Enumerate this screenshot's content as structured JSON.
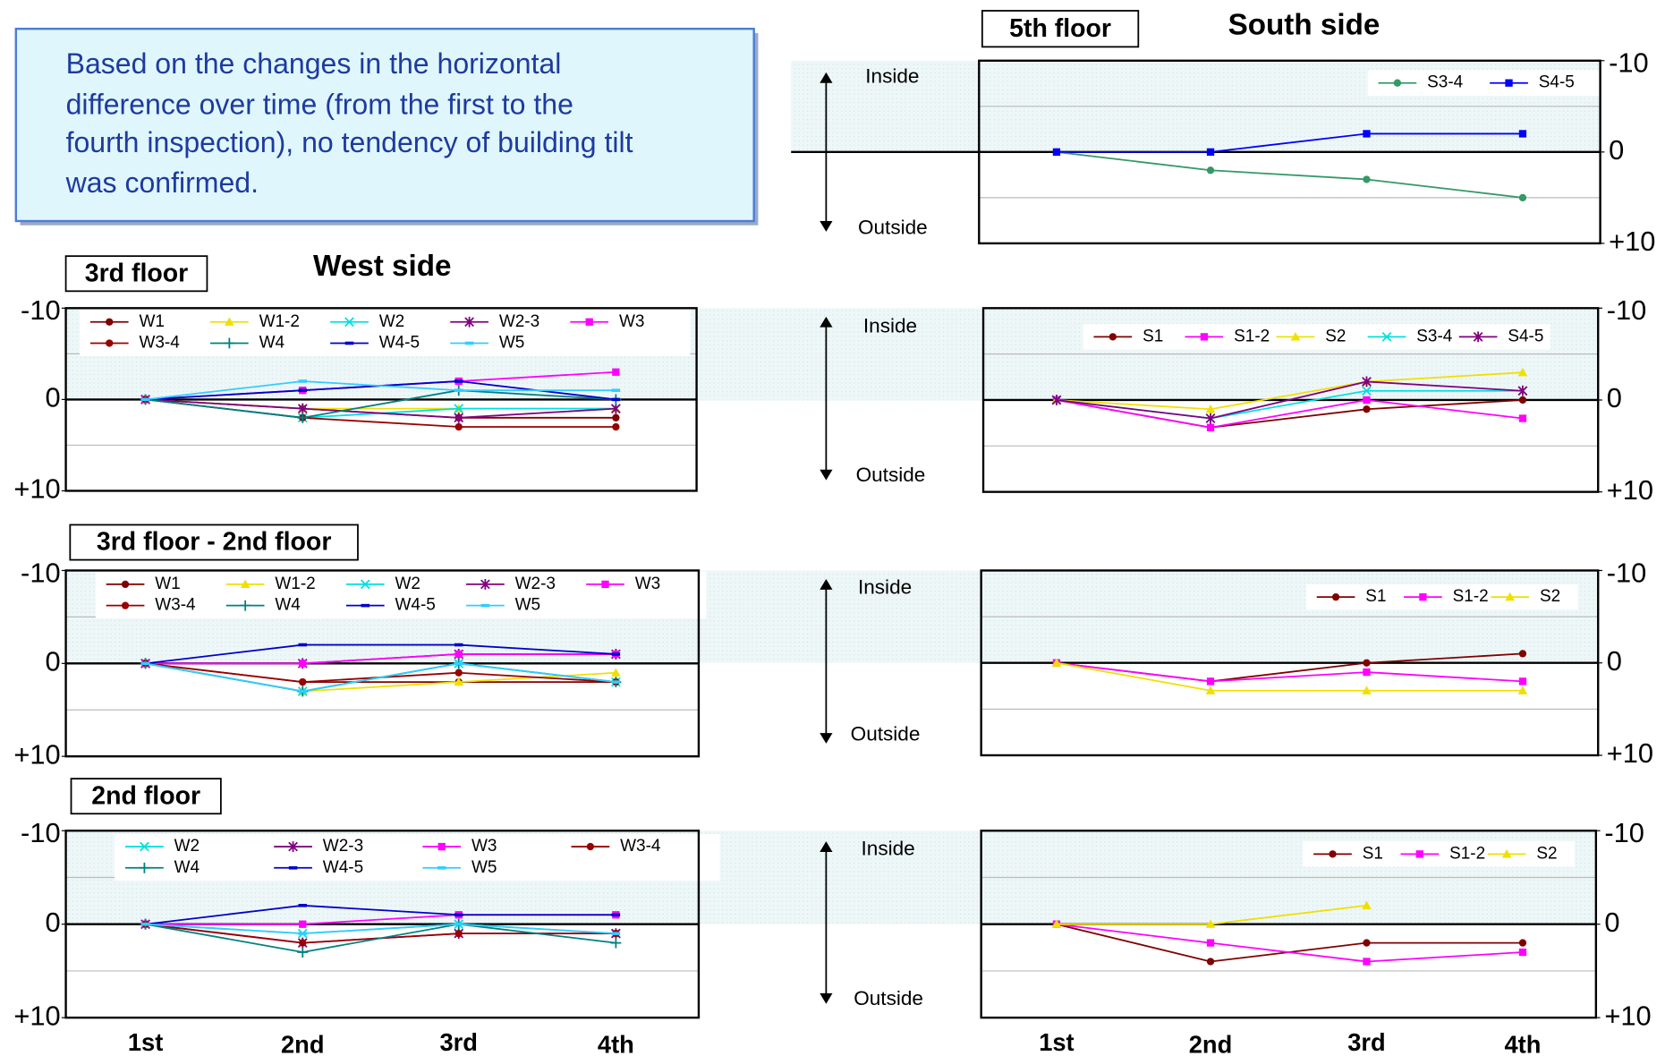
{
  "note": {
    "lines": [
      "Based on the changes in the horizontal",
      "difference over time (from the first to the",
      "fourth inspection), no tendency of building tilt",
      "was confirmed."
    ]
  },
  "headings": {
    "west": "West side",
    "south": "South side"
  },
  "arrows": [
    {
      "inside": "Inside",
      "outside": "Outside"
    },
    {
      "inside": "Inside",
      "outside": "Outside"
    },
    {
      "inside": "Inside",
      "outside": "Outside"
    },
    {
      "inside": "Inside",
      "outside": "Outside"
    }
  ],
  "chart_data": [
    {
      "type": "line",
      "title": "5th floor",
      "categories": [
        null,
        null,
        null,
        null
      ],
      "series": [
        {
          "name": "S3-4",
          "color": "#339966",
          "marker": "circle",
          "values": [
            0,
            2,
            3,
            5
          ]
        },
        {
          "name": "S4-5",
          "color": "#0000ff",
          "marker": "square",
          "values": [
            0,
            0,
            -2,
            -2
          ]
        }
      ],
      "ylim": [
        -10,
        10
      ],
      "y_reversed": true,
      "yticks": [
        -10,
        0,
        {
          "value": 10,
          "label": "+10"
        }
      ],
      "grid_lines": [
        -5,
        5
      ],
      "legend": "upper right"
    },
    {
      "type": "line",
      "title": "3rd floor",
      "categories": [
        null,
        null,
        null,
        null
      ],
      "series": [
        {
          "name": "W1",
          "color": "#800000",
          "marker": "circle",
          "values": [
            0,
            1,
            2,
            2
          ]
        },
        {
          "name": "W1-2",
          "color": "#f0e000",
          "marker": "triangle",
          "values": [
            0,
            1,
            1,
            1
          ]
        },
        {
          "name": "W2",
          "color": "#00e0e0",
          "marker": "x",
          "values": [
            0,
            2,
            1,
            1
          ]
        },
        {
          "name": "W2-3",
          "color": "#800080",
          "marker": "star",
          "values": [
            0,
            1,
            2,
            1
          ]
        },
        {
          "name": "W3",
          "color": "#ff00ff",
          "marker": "square",
          "values": [
            0,
            -1,
            -2,
            -3
          ]
        },
        {
          "name": "W3-4",
          "color": "#990000",
          "marker": "circle",
          "values": [
            0,
            2,
            3,
            3
          ]
        },
        {
          "name": "W4",
          "color": "#008080",
          "marker": "plus",
          "values": [
            0,
            2,
            -1,
            0
          ]
        },
        {
          "name": "W4-5",
          "color": "#0000cc",
          "marker": "dash",
          "values": [
            0,
            -1,
            -2,
            0
          ]
        },
        {
          "name": "W5",
          "color": "#33ccff",
          "marker": "dash",
          "values": [
            0,
            -2,
            -1,
            -1
          ]
        }
      ],
      "ylim": [
        -10,
        10
      ],
      "y_reversed": true,
      "yticks": [
        -10,
        0,
        {
          "value": 10,
          "label": "+10"
        }
      ],
      "grid_lines": [
        -5,
        5
      ],
      "legend": "upper left"
    },
    {
      "type": "line",
      "categories": [
        null,
        null,
        null,
        null
      ],
      "series": [
        {
          "name": "S1",
          "color": "#800000",
          "marker": "circle",
          "values": [
            0,
            3,
            1,
            0
          ]
        },
        {
          "name": "S1-2",
          "color": "#ff00ff",
          "marker": "square",
          "values": [
            0,
            3,
            0,
            2
          ]
        },
        {
          "name": "S2",
          "color": "#f0e000",
          "marker": "triangle",
          "values": [
            0,
            1,
            -2,
            -3
          ]
        },
        {
          "name": "S3-4",
          "color": "#00e0e0",
          "marker": "x",
          "values": [
            0,
            2,
            -1,
            -1
          ]
        },
        {
          "name": "S4-5",
          "color": "#800080",
          "marker": "star",
          "values": [
            0,
            2,
            -2,
            -1
          ]
        }
      ],
      "ylim": [
        -10,
        10
      ],
      "y_reversed": true,
      "yticks": [
        -10,
        0,
        {
          "value": 10,
          "label": "+10"
        }
      ],
      "grid_lines": [
        -5,
        5
      ],
      "legend": "upper center"
    },
    {
      "type": "line",
      "title": "3rd floor - 2nd floor",
      "categories": [
        null,
        null,
        null,
        null
      ],
      "series": [
        {
          "name": "W1",
          "color": "#800000",
          "marker": "circle",
          "values": [
            0,
            2,
            2,
            2
          ]
        },
        {
          "name": "W1-2",
          "color": "#f0e000",
          "marker": "triangle",
          "values": [
            0,
            3,
            2,
            1
          ]
        },
        {
          "name": "W2",
          "color": "#00e0e0",
          "marker": "x",
          "values": [
            0,
            3,
            0,
            2
          ]
        },
        {
          "name": "W2-3",
          "color": "#800080",
          "marker": "star",
          "values": [
            0,
            0,
            -1,
            -1
          ]
        },
        {
          "name": "W3",
          "color": "#ff00ff",
          "marker": "square",
          "values": [
            0,
            0,
            -1,
            -1
          ]
        },
        {
          "name": "W3-4",
          "color": "#990000",
          "marker": "circle",
          "values": [
            0,
            2,
            1,
            2
          ]
        },
        {
          "name": "W4",
          "color": "#008080",
          "marker": "plus",
          "values": [
            0,
            3,
            0,
            2
          ]
        },
        {
          "name": "W4-5",
          "color": "#0000cc",
          "marker": "dash",
          "values": [
            0,
            -2,
            -2,
            -1
          ]
        },
        {
          "name": "W5",
          "color": "#33ccff",
          "marker": "dash",
          "values": [
            0,
            3,
            0,
            2
          ]
        }
      ],
      "ylim": [
        -10,
        10
      ],
      "y_reversed": true,
      "yticks": [
        -10,
        0,
        {
          "value": 10,
          "label": "+10"
        }
      ],
      "grid_lines": [
        -5,
        5
      ],
      "legend": "upper left"
    },
    {
      "type": "line",
      "categories": [
        null,
        null,
        null,
        null
      ],
      "series": [
        {
          "name": "S1",
          "color": "#800000",
          "marker": "circle",
          "values": [
            0,
            2,
            0,
            -1
          ]
        },
        {
          "name": "S1-2",
          "color": "#ff00ff",
          "marker": "square",
          "values": [
            0,
            2,
            1,
            2
          ]
        },
        {
          "name": "S2",
          "color": "#f0e000",
          "marker": "triangle",
          "values": [
            0,
            3,
            3,
            3
          ]
        }
      ],
      "ylim": [
        -10,
        10
      ],
      "y_reversed": true,
      "yticks": [
        -10,
        0,
        {
          "value": 10,
          "label": "+10"
        }
      ],
      "grid_lines": [
        -5,
        5
      ],
      "legend": "upper right"
    },
    {
      "type": "line",
      "title": "2nd floor",
      "categories": [
        "1st",
        "2nd",
        "3rd",
        "4th"
      ],
      "series": [
        {
          "name": "W2",
          "color": "#00e0e0",
          "marker": "x",
          "values": [
            0,
            1,
            0,
            1
          ]
        },
        {
          "name": "W2-3",
          "color": "#800080",
          "marker": "star",
          "values": [
            0,
            2,
            1,
            1
          ]
        },
        {
          "name": "W3",
          "color": "#ff00ff",
          "marker": "square",
          "values": [
            0,
            0,
            -1,
            -1
          ]
        },
        {
          "name": "W3-4",
          "color": "#990000",
          "marker": "circle",
          "values": [
            0,
            2,
            1,
            1
          ]
        },
        {
          "name": "W4",
          "color": "#008080",
          "marker": "plus",
          "values": [
            0,
            3,
            0,
            2
          ]
        },
        {
          "name": "W4-5",
          "color": "#0000cc",
          "marker": "dash",
          "values": [
            0,
            -2,
            -1,
            -1
          ]
        },
        {
          "name": "W5",
          "color": "#33ccff",
          "marker": "dash",
          "values": [
            0,
            1,
            0,
            1
          ]
        }
      ],
      "ylim": [
        -10,
        10
      ],
      "y_reversed": true,
      "yticks": [
        -10,
        0,
        {
          "value": 10,
          "label": "+10"
        }
      ],
      "grid_lines": [
        -5,
        5
      ],
      "legend": "upper left"
    },
    {
      "type": "line",
      "categories": [
        "1st",
        "2nd",
        "3rd",
        "4th"
      ],
      "series": [
        {
          "name": "S1",
          "color": "#800000",
          "marker": "circle",
          "values": [
            0,
            4,
            2,
            2
          ]
        },
        {
          "name": "S1-2",
          "color": "#ff00ff",
          "marker": "square",
          "values": [
            0,
            2,
            4,
            3
          ]
        },
        {
          "name": "S2",
          "color": "#f0e000",
          "marker": "triangle",
          "values": [
            0,
            0,
            -2,
            null
          ]
        }
      ],
      "ylim": [
        -10,
        10
      ],
      "y_reversed": true,
      "yticks": [
        -10,
        0,
        {
          "value": 10,
          "label": "+10"
        }
      ],
      "grid_lines": [
        -5,
        5
      ],
      "legend": "upper right"
    }
  ]
}
